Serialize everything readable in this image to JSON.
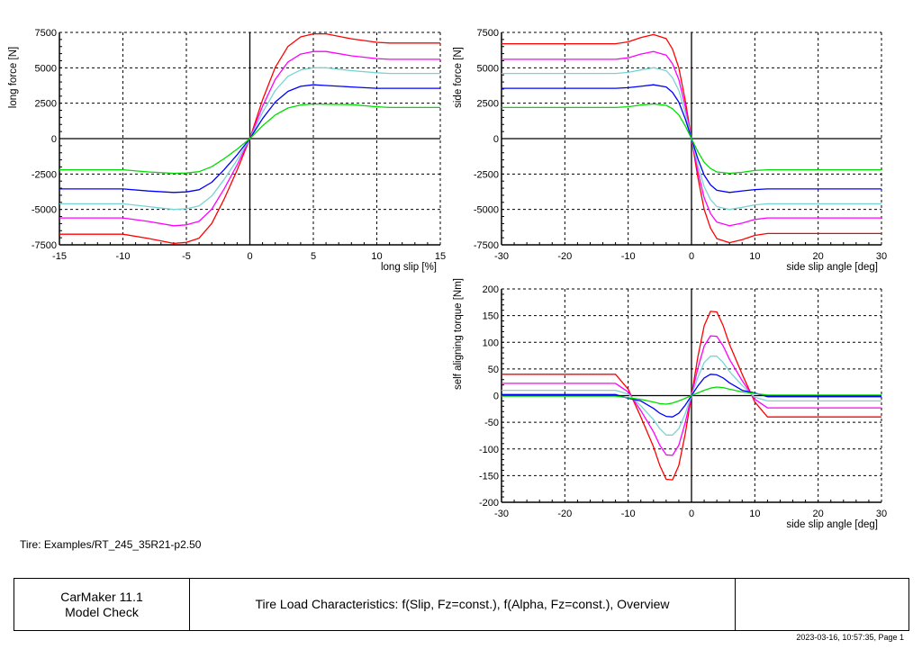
{
  "colors": {
    "red": "#ff0000",
    "magenta": "#ff00ff",
    "cyan": "#77d4d4",
    "blue": "#0000ff",
    "green": "#00dd00"
  },
  "chart_data": [
    {
      "type": "line",
      "xlabel": "long slip  [%]",
      "ylabel": "long force  [N]",
      "xlim": [
        -15,
        15
      ],
      "ylim": [
        -7500,
        7500
      ],
      "xticks": [
        -15,
        -10,
        -5,
        0,
        5,
        10,
        15
      ],
      "yticks": [
        -7500,
        -5000,
        -2500,
        0,
        2500,
        5000,
        7500
      ],
      "grid": true,
      "x": [
        -15,
        -10,
        -8,
        -6,
        -5,
        -4,
        -3,
        -2,
        -1,
        0,
        1,
        2,
        3,
        4,
        5,
        6,
        8,
        10,
        11,
        15
      ],
      "series": [
        {
          "color": "red",
          "values": [
            -6750,
            -6750,
            -7050,
            -7400,
            -7330,
            -7030,
            -5990,
            -4220,
            -2220,
            0,
            2740,
            5030,
            6510,
            7180,
            7400,
            7400,
            7050,
            6800,
            6750,
            6750
          ]
        },
        {
          "color": "magenta",
          "values": [
            -5600,
            -5600,
            -5850,
            -6150,
            -6090,
            -5840,
            -4980,
            -3510,
            -1850,
            0,
            2280,
            4180,
            5410,
            5970,
            6150,
            6150,
            5850,
            5650,
            5600,
            5600
          ]
        },
        {
          "color": "cyan",
          "values": [
            -4600,
            -4600,
            -4800,
            -5000,
            -4950,
            -4750,
            -4050,
            -2850,
            -1500,
            0,
            1850,
            3400,
            4400,
            4850,
            5000,
            5000,
            4800,
            4650,
            4600,
            4600
          ]
        },
        {
          "color": "blue",
          "values": [
            -3550,
            -3550,
            -3700,
            -3800,
            -3760,
            -3610,
            -3080,
            -2170,
            -1140,
            0,
            1410,
            2580,
            3340,
            3690,
            3800,
            3750,
            3650,
            3550,
            3550,
            3550
          ]
        },
        {
          "color": "green",
          "values": [
            -2200,
            -2200,
            -2350,
            -2450,
            -2430,
            -2330,
            -1980,
            -1400,
            -740,
            0,
            910,
            1670,
            2160,
            2380,
            2450,
            2420,
            2400,
            2250,
            2200,
            2200
          ]
        }
      ]
    },
    {
      "type": "line",
      "xlabel": "side slip angle  [deg]",
      "ylabel": "side force  [N]",
      "xlim": [
        -30,
        30
      ],
      "ylim": [
        -7500,
        7500
      ],
      "xticks": [
        -30,
        -20,
        -10,
        0,
        10,
        20,
        30
      ],
      "yticks": [
        -7500,
        -5000,
        -2500,
        0,
        2500,
        5000,
        7500
      ],
      "grid": true,
      "x": [
        -30,
        -12,
        -10,
        -8,
        -6,
        -4,
        -3,
        -2,
        -1,
        0,
        1,
        2,
        3,
        4,
        6,
        8,
        10,
        12,
        30
      ],
      "series": [
        {
          "color": "red",
          "values": [
            6700,
            6700,
            6830,
            7130,
            7350,
            7060,
            6320,
            5000,
            2720,
            0,
            -2720,
            -5000,
            -6320,
            -7060,
            -7350,
            -7130,
            -6830,
            -6700,
            -6700
          ]
        },
        {
          "color": "magenta",
          "values": [
            5600,
            5600,
            5710,
            5970,
            6150,
            5900,
            5290,
            4180,
            2280,
            0,
            -2280,
            -4180,
            -5290,
            -5900,
            -6150,
            -5970,
            -5710,
            -5600,
            -5600
          ]
        },
        {
          "color": "cyan",
          "values": [
            4600,
            4600,
            4680,
            4850,
            5000,
            4800,
            4300,
            3400,
            1850,
            0,
            -1850,
            -3400,
            -4300,
            -4800,
            -5000,
            -4850,
            -4680,
            -4600,
            -4600
          ]
        },
        {
          "color": "blue",
          "values": [
            3550,
            3550,
            3600,
            3690,
            3800,
            3650,
            3270,
            2580,
            1410,
            0,
            -1410,
            -2580,
            -3270,
            -3650,
            -3800,
            -3690,
            -3600,
            -3550,
            -3550
          ]
        },
        {
          "color": "green",
          "values": [
            2200,
            2200,
            2250,
            2380,
            2450,
            2350,
            2110,
            1670,
            910,
            0,
            -910,
            -1670,
            -2110,
            -2350,
            -2450,
            -2380,
            -2250,
            -2200,
            -2200
          ]
        }
      ]
    },
    {
      "type": "line",
      "xlabel": "side slip angle  [deg]",
      "ylabel": "self aligning torque  [Nm]",
      "xlim": [
        -30,
        30
      ],
      "ylim": [
        -200,
        200
      ],
      "xticks": [
        -30,
        -20,
        -10,
        0,
        10,
        20,
        30
      ],
      "yticks": [
        -200,
        -150,
        -100,
        -50,
        0,
        50,
        100,
        150,
        200
      ],
      "grid": true,
      "x": [
        -30,
        -12,
        -10,
        -8,
        -6,
        -5,
        -4,
        -3,
        -2,
        -1,
        0,
        1,
        2,
        3,
        4,
        5,
        6,
        8,
        10,
        12,
        30
      ],
      "series": [
        {
          "color": "red",
          "values": [
            40,
            40,
            12,
            -40,
            -96,
            -131,
            -157,
            -158,
            -131,
            -72,
            0,
            72,
            131,
            158,
            157,
            131,
            96,
            40,
            -12,
            -40,
            -40
          ]
        },
        {
          "color": "magenta",
          "values": [
            23,
            23,
            7,
            -28,
            -68,
            -93,
            -111,
            -112,
            -93,
            -51,
            0,
            51,
            93,
            112,
            111,
            93,
            68,
            28,
            -7,
            -23,
            -23
          ]
        },
        {
          "color": "cyan",
          "values": [
            10,
            10,
            3,
            -19,
            -45,
            -62,
            -74,
            -74,
            -62,
            -34,
            0,
            34,
            62,
            74,
            74,
            62,
            45,
            19,
            -3,
            -10,
            -10
          ]
        },
        {
          "color": "blue",
          "values": [
            2,
            2,
            -5,
            -10,
            -24,
            -33,
            -39,
            -40,
            -33,
            -18,
            0,
            18,
            33,
            40,
            39,
            33,
            24,
            10,
            5,
            -2,
            -2
          ]
        },
        {
          "color": "green",
          "values": [
            -1,
            -1,
            -4,
            -7,
            -12,
            -15,
            -16,
            -14,
            -10,
            -5,
            0,
            5,
            10,
            14,
            16,
            15,
            12,
            7,
            4,
            1,
            1
          ]
        }
      ]
    }
  ],
  "footer": {
    "tire": "Tire: Examples/RT_245_35R21-p2.50",
    "product": "CarMaker 11.1",
    "module": "Model Check",
    "title": "Tire Load Characteristics: f(Slip, Fz=const.), f(Alpha, Fz=const.), Overview",
    "stamp": "2023-03-16, 10:57:35, Page 1"
  }
}
